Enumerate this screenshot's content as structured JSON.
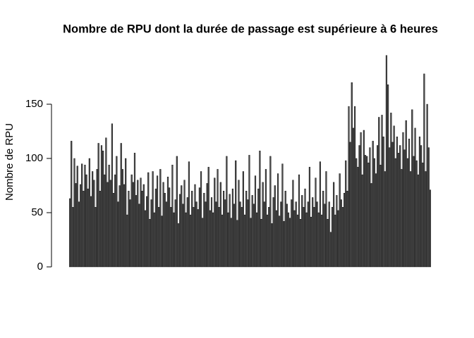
{
  "chart_data": {
    "type": "bar",
    "title": "Nombre de RPU dont la durée de passage est supérieure à 6 heures",
    "ylabel": "Nombre de RPU",
    "color": "#4d4d4d",
    "ylim": [
      0,
      200
    ],
    "yticks": [
      0,
      50,
      100,
      150
    ],
    "values": [
      63,
      116,
      55,
      100,
      77,
      93,
      60,
      76,
      95,
      70,
      94,
      85,
      72,
      100,
      65,
      88,
      80,
      55,
      90,
      114,
      70,
      112,
      107,
      85,
      119,
      78,
      94,
      80,
      132,
      68,
      85,
      102,
      60,
      75,
      114,
      90,
      76,
      100,
      48,
      70,
      62,
      85,
      78,
      105,
      66,
      80,
      58,
      82,
      70,
      76,
      52,
      65,
      87,
      44,
      62,
      88,
      50,
      72,
      84,
      55,
      90,
      47,
      78,
      68,
      60,
      83,
      73,
      55,
      94,
      50,
      62,
      102,
      40,
      67,
      75,
      58,
      80,
      50,
      64,
      97,
      48,
      70,
      55,
      76,
      60,
      53,
      73,
      88,
      45,
      68,
      60,
      77,
      92,
      52,
      64,
      50,
      82,
      60,
      90,
      55,
      78,
      48,
      70,
      62,
      102,
      50,
      67,
      45,
      72,
      58,
      98,
      43,
      80,
      60,
      55,
      88,
      48,
      70,
      62,
      103,
      45,
      66,
      58,
      84,
      50,
      72,
      107,
      44,
      78,
      60,
      90,
      48,
      55,
      102,
      40,
      64,
      75,
      52,
      86,
      47,
      60,
      95,
      42,
      70,
      58,
      50,
      45,
      62,
      80,
      52,
      60,
      48,
      85,
      44,
      66,
      55,
      72,
      50,
      60,
      92,
      46,
      64,
      55,
      82,
      60,
      50,
      97,
      48,
      70,
      58,
      88,
      44,
      60,
      32,
      55,
      78,
      48,
      66,
      52,
      86,
      62,
      55,
      68,
      98,
      70,
      148,
      115,
      170,
      128,
      148,
      100,
      92,
      112,
      124,
      85,
      126,
      103,
      102,
      96,
      110,
      77,
      116,
      100,
      86,
      112,
      138,
      94,
      140,
      120,
      88,
      195,
      168,
      110,
      142,
      115,
      130,
      100,
      120,
      105,
      112,
      90,
      124,
      108,
      135,
      100,
      118,
      88,
      145,
      102,
      128,
      98,
      85,
      120,
      112,
      96,
      178,
      88,
      150,
      110,
      71
    ]
  }
}
